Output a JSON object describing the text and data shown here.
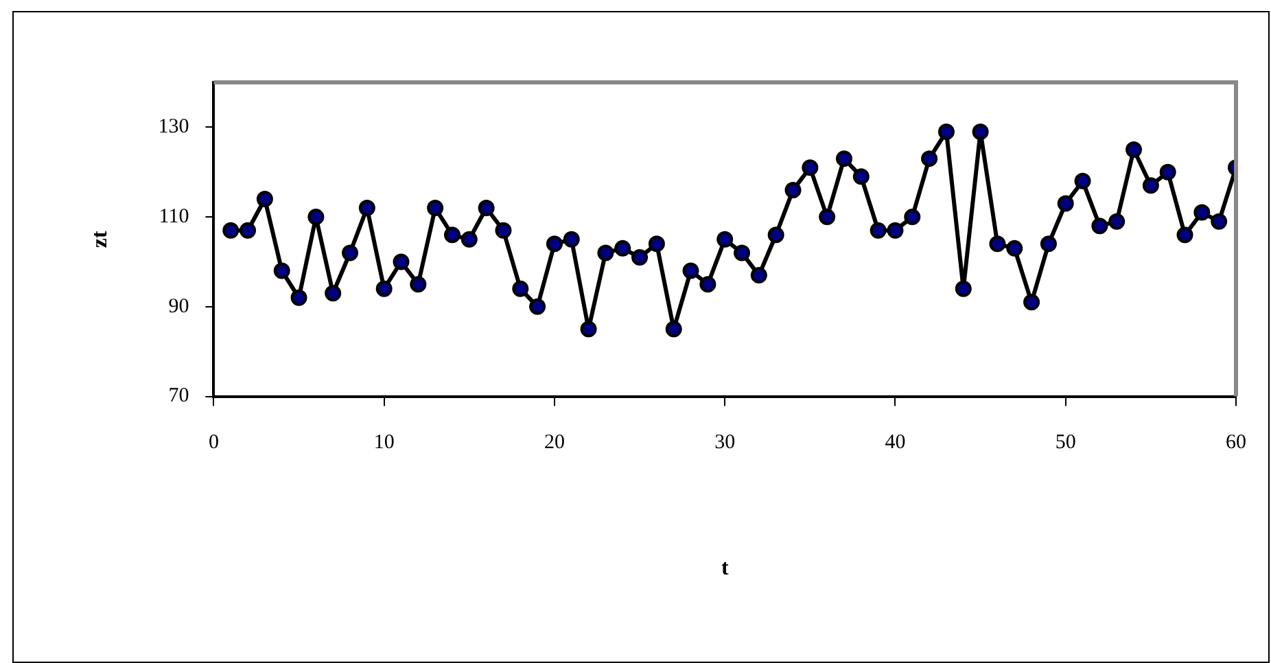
{
  "chart_data": {
    "type": "line",
    "xlabel": "t",
    "ylabel": "zt",
    "x": [
      1,
      2,
      3,
      4,
      5,
      6,
      7,
      8,
      9,
      10,
      11,
      12,
      13,
      14,
      15,
      16,
      17,
      18,
      19,
      20,
      21,
      22,
      23,
      24,
      25,
      26,
      27,
      28,
      29,
      30,
      31,
      32,
      33,
      34,
      35,
      36,
      37,
      38,
      39,
      40,
      41,
      42,
      43,
      44,
      45,
      46,
      47,
      48,
      49,
      50,
      51,
      52,
      53,
      54,
      55,
      56,
      57,
      58,
      59,
      60
    ],
    "series": [
      {
        "color": "#000080",
        "values": [
          107,
          107,
          114,
          98,
          92,
          110,
          93,
          102,
          112,
          94,
          100,
          95,
          112,
          106,
          105,
          112,
          107,
          94,
          90,
          104,
          105,
          85,
          102,
          103,
          101,
          104,
          85,
          98,
          95,
          105,
          102,
          97,
          106,
          116,
          121,
          110,
          123,
          119,
          107,
          107,
          110,
          123,
          129,
          94,
          129,
          104,
          103,
          91,
          104,
          113,
          118,
          108,
          109,
          125,
          117,
          120,
          106,
          111,
          109,
          121
        ]
      }
    ],
    "xlim": [
      0,
      60
    ],
    "xticks": [
      0,
      10,
      20,
      30,
      40,
      50,
      60
    ],
    "ylim": [
      70,
      140
    ],
    "yticks": [
      70,
      90,
      110,
      130
    ],
    "grid": false,
    "legend": false,
    "marker": "circle",
    "line_style": "solid"
  }
}
